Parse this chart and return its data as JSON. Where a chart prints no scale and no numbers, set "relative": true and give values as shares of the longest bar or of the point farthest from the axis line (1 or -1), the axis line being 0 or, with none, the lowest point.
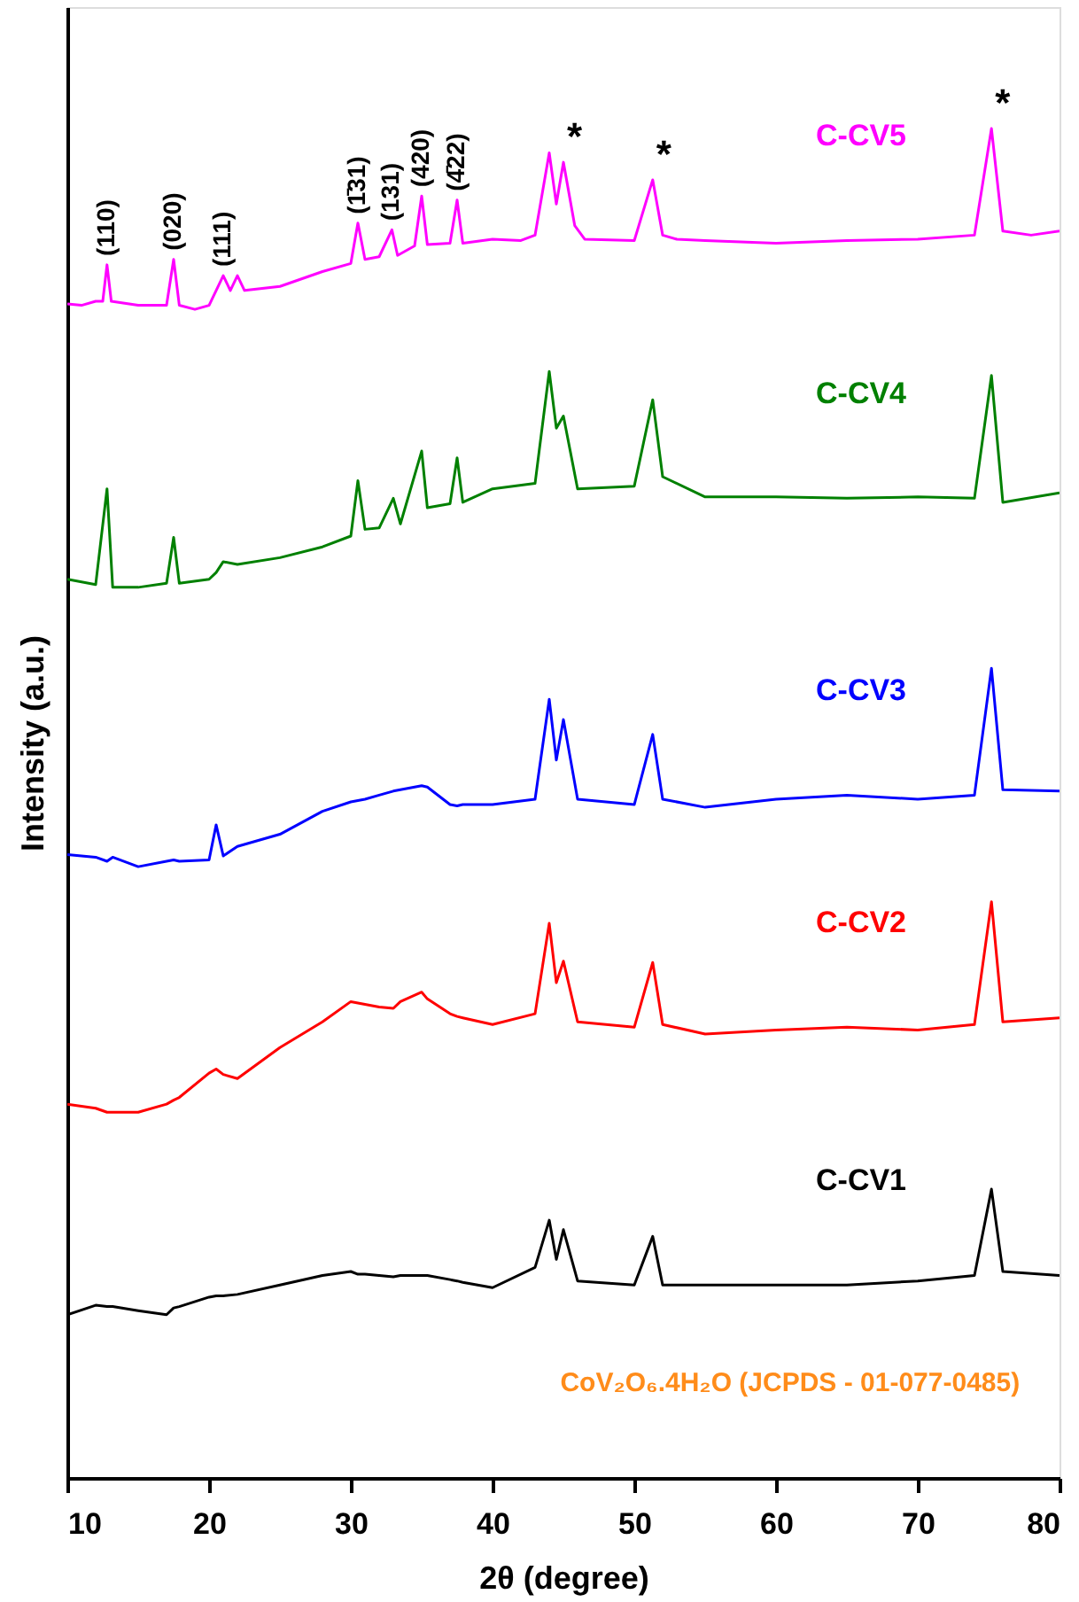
{
  "chart_data": {
    "type": "line",
    "relative": true,
    "xlabel": "2θ (degree)",
    "ylabel": "Intensity (a.u.)",
    "xlim": [
      10,
      80
    ],
    "xticks": [
      10,
      20,
      30,
      40,
      50,
      60,
      70,
      80
    ],
    "grid": false,
    "line_style": "solid",
    "marker": "none",
    "x": [
      10,
      12,
      12.8,
      13.2,
      15,
      17,
      17.5,
      17.9,
      20,
      20.5,
      21,
      22,
      25,
      28,
      30,
      30.5,
      31,
      32,
      33,
      33.5,
      35,
      35.4,
      37,
      37.5,
      37.9,
      40,
      43,
      44,
      44.5,
      45,
      46,
      50,
      51.3,
      52,
      55,
      60,
      65,
      70,
      74,
      75.2,
      76,
      80
    ],
    "series": [
      {
        "name": "C-CV1",
        "color": "#000000",
        "values": [
          0.121,
          0.128,
          0.127,
          0.127,
          0.124,
          0.121,
          0.126,
          0.127,
          0.134,
          0.135,
          0.135,
          0.136,
          0.143,
          0.15,
          0.153,
          0.151,
          0.151,
          0.15,
          0.149,
          0.15,
          0.15,
          0.15,
          0.147,
          0.146,
          0.145,
          0.141,
          0.156,
          0.191,
          0.162,
          0.184,
          0.146,
          0.143,
          0.179,
          0.143,
          0.143,
          0.143,
          0.143,
          0.146,
          0.15,
          0.214,
          0.153,
          0.15
        ]
      },
      {
        "name": "C-CV2",
        "color": "#ff0000",
        "values": [
          0.277,
          0.274,
          0.271,
          0.271,
          0.271,
          0.277,
          0.28,
          0.282,
          0.3,
          0.303,
          0.299,
          0.296,
          0.319,
          0.338,
          0.353,
          0.352,
          0.351,
          0.349,
          0.348,
          0.353,
          0.36,
          0.355,
          0.344,
          0.342,
          0.341,
          0.336,
          0.344,
          0.411,
          0.367,
          0.383,
          0.338,
          0.334,
          0.382,
          0.336,
          0.329,
          0.332,
          0.334,
          0.332,
          0.336,
          0.427,
          0.338,
          0.341
        ]
      },
      {
        "name": "C-CV3",
        "color": "#0000ff",
        "values": [
          0.462,
          0.46,
          0.457,
          0.46,
          0.453,
          0.457,
          0.458,
          0.457,
          0.458,
          0.484,
          0.461,
          0.468,
          0.477,
          0.494,
          0.501,
          0.502,
          0.503,
          0.506,
          0.509,
          0.51,
          0.513,
          0.512,
          0.499,
          0.498,
          0.499,
          0.499,
          0.503,
          0.577,
          0.532,
          0.562,
          0.503,
          0.499,
          0.551,
          0.503,
          0.497,
          0.503,
          0.506,
          0.503,
          0.506,
          0.6,
          0.51,
          0.509
        ]
      },
      {
        "name": "C-CV4",
        "color": "#008000",
        "values": [
          0.666,
          0.662,
          0.733,
          0.66,
          0.66,
          0.663,
          0.697,
          0.663,
          0.666,
          0.671,
          0.679,
          0.677,
          0.682,
          0.69,
          0.698,
          0.739,
          0.703,
          0.704,
          0.726,
          0.707,
          0.761,
          0.719,
          0.722,
          0.756,
          0.723,
          0.733,
          0.737,
          0.82,
          0.778,
          0.787,
          0.733,
          0.735,
          0.799,
          0.742,
          0.727,
          0.727,
          0.726,
          0.727,
          0.726,
          0.817,
          0.723,
          0.73
        ]
      },
      {
        "name": "C-CV5",
        "color": "#ff00ff",
        "x": [
          10,
          11,
          12,
          12.5,
          12.8,
          13.1,
          15,
          17,
          17.5,
          17.9,
          19,
          20,
          21,
          21.5,
          22,
          22.5,
          25,
          28,
          30,
          30.5,
          31,
          32,
          32.9,
          33.3,
          34.5,
          35,
          35.4,
          37,
          37.5,
          37.9,
          40,
          42,
          43,
          44,
          44.5,
          45,
          45.8,
          46.5,
          50,
          51.3,
          52,
          53,
          55,
          60,
          65,
          70,
          74,
          75.2,
          76,
          78,
          80
        ],
        "values": [
          0.87,
          0.869,
          0.872,
          0.872,
          0.899,
          0.872,
          0.869,
          0.869,
          0.903,
          0.869,
          0.866,
          0.869,
          0.891,
          0.88,
          0.891,
          0.88,
          0.883,
          0.894,
          0.9,
          0.93,
          0.903,
          0.905,
          0.925,
          0.906,
          0.913,
          0.95,
          0.914,
          0.915,
          0.947,
          0.915,
          0.918,
          0.917,
          0.921,
          0.982,
          0.944,
          0.975,
          0.928,
          0.918,
          0.917,
          0.962,
          0.921,
          0.918,
          0.917,
          0.915,
          0.917,
          0.918,
          0.921,
          1.0,
          0.924,
          0.921,
          0.924
        ]
      }
    ],
    "annotations": [
      {
        "text": "(110)",
        "x": 12.8,
        "y": 0.899
      },
      {
        "text": "(020)",
        "x": 17.5,
        "y": 0.903
      },
      {
        "text": "(111)",
        "x": 21,
        "y": 0.891
      },
      {
        "text": "(1̄31)",
        "x": 30.5,
        "y": 0.93
      },
      {
        "text": "(131)",
        "x": 32.9,
        "y": 0.925
      },
      {
        "text": "(420)",
        "x": 35,
        "y": 0.95
      },
      {
        "text": "(4̄22)",
        "x": 37.5,
        "y": 0.947
      },
      {
        "text": "*",
        "x": 45,
        "y": 0.975
      },
      {
        "text": "*",
        "x": 51.3,
        "y": 0.962
      },
      {
        "text": "*",
        "x": 75.2,
        "y": 1.0
      },
      "CoV₂O₆.4H₂O (JCPDS - 01-077-0485)"
    ]
  }
}
